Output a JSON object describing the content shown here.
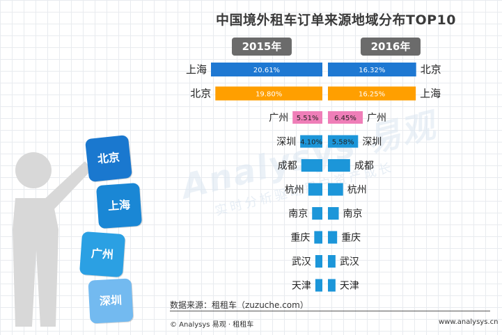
{
  "title": "中国境外租车订单来源地域分布TOP10",
  "chart_data": {
    "type": "bar",
    "title": "中国境外租车订单来源地域分布TOP10",
    "series": [
      {
        "name": "2015年",
        "categories": [
          "上海",
          "北京",
          "广州",
          "深圳",
          "成都",
          "杭州",
          "南京",
          "重庆",
          "武汉",
          "天津"
        ],
        "values": [
          20.61,
          19.8,
          5.51,
          4.1,
          3.9,
          2.6,
          1.9,
          1.5,
          1.3,
          1.3
        ],
        "labels": [
          "20.61%",
          "19.80%",
          "5.51%",
          "4.10%",
          "",
          "",
          "",
          "",
          "",
          ""
        ],
        "colors": [
          "#1e78d2",
          "#ff9f00",
          "#ef7eb8",
          "#1c96d9",
          "#1c96d9",
          "#1c96d9",
          "#1c96d9",
          "#1c96d9",
          "#1c96d9",
          "#1c96d9"
        ]
      },
      {
        "name": "2016年",
        "categories": [
          "北京",
          "上海",
          "广州",
          "深圳",
          "成都",
          "杭州",
          "南京",
          "重庆",
          "武汉",
          "天津"
        ],
        "values": [
          16.32,
          16.25,
          6.45,
          5.58,
          4.1,
          2.8,
          2.0,
          1.7,
          1.4,
          1.4
        ],
        "labels": [
          "16.32%",
          "16.25%",
          "6.45%",
          "5.58%",
          "",
          "",
          "",
          "",
          "",
          ""
        ],
        "colors": [
          "#1e78d2",
          "#ff9f00",
          "#ef7eb8",
          "#1c96d9",
          "#1c96d9",
          "#1c96d9",
          "#1c96d9",
          "#1c96d9",
          "#1c96d9",
          "#1c96d9"
        ]
      }
    ],
    "xlim": [
      0,
      20.61
    ]
  },
  "source": "数据来源：租租车（zuzuche.com）",
  "footer_left": "© Analysys 易观 · 租租车",
  "footer_right": "www.analysys.cn",
  "watermark": "Analysys 易观",
  "watermark_tagline": "实时分析驱动用户资产成长",
  "figure_blocks": [
    {
      "label": "北京",
      "color": "#1a78cf"
    },
    {
      "label": "上海",
      "color": "#1a87d5"
    },
    {
      "label": "广州",
      "color": "#2ba0e3"
    },
    {
      "label": "深圳",
      "color": "#73baf0"
    }
  ]
}
